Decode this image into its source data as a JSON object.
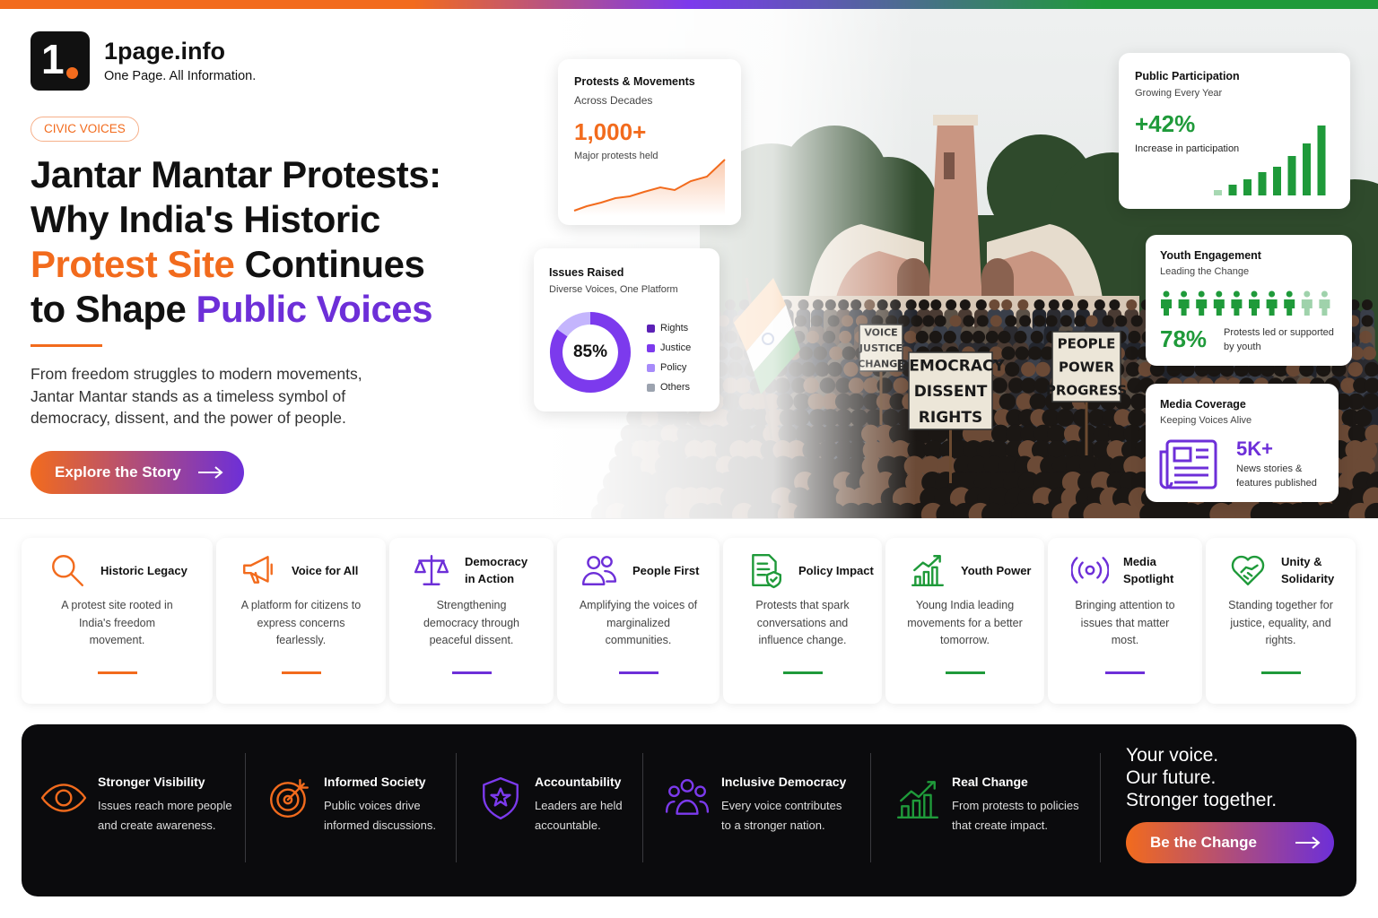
{
  "brand": {
    "name": "1page.info",
    "tagline": "One Page. All Information."
  },
  "hero": {
    "badge": "CIVIC VOICES",
    "title": [
      [
        {
          "text": "Jantar Mantar Protests:"
        }
      ],
      [
        {
          "text": "Why India's Historic"
        }
      ],
      [
        {
          "text": "Protest Site",
          "color": "#f26b1d"
        },
        {
          "text": " Continues"
        }
      ],
      [
        {
          "text": "to Shape "
        },
        {
          "text": "Public Voices",
          "color": "#6d2fd8"
        }
      ]
    ],
    "description": "From freedom struggles to modern movements, Jantar Mantar stands as a timeless symbol of democracy, dissent, and the power of people.",
    "button": "Explore the Story"
  },
  "photo_signs": [
    [
      "VOICE",
      "JUSTICE",
      "CHANGE"
    ],
    [
      "DEMOCRACY",
      "DISSENT",
      "RIGHTS"
    ],
    [
      "PEOPLE",
      "POWER",
      "PROGRESS"
    ]
  ],
  "stats": {
    "protests": {
      "title": "Protests & Movements",
      "subtitle": "Across Decades",
      "value": "1,000+",
      "caption": "Major protests held"
    },
    "issues": {
      "title": "Issues Raised",
      "subtitle": "Diverse Voices, One Platform",
      "value": "85%",
      "legend": [
        {
          "label": "Rights",
          "color": "#5b21b6"
        },
        {
          "label": "Justice",
          "color": "#7c3aed"
        },
        {
          "label": "Policy",
          "color": "#a78bfa"
        },
        {
          "label": "Others",
          "color": "#9ca3af"
        }
      ]
    },
    "participation": {
      "title": "Public Participation",
      "subtitle": "Growing Every Year",
      "value": "+42%",
      "caption": "Increase in participation"
    },
    "youth": {
      "title": "Youth Engagement",
      "subtitle": "Leading the Change",
      "value": "78%",
      "caption": "Protests led or supported by youth"
    },
    "media": {
      "title": "Media Coverage",
      "subtitle": "Keeping Voices Alive",
      "value": "5K+",
      "caption": "News stories & features published"
    }
  },
  "features": [
    {
      "title": "Historic Legacy",
      "description": "A protest site rooted in India's freedom movement.",
      "color": "#f26b1d"
    },
    {
      "title": "Voice for All",
      "description": "A platform for citizens to express concerns fearlessly.",
      "color": "#f26b1d"
    },
    {
      "title": "Democracy in Action",
      "description": "Strengthening democracy through peaceful dissent.",
      "color": "#6d2fd8"
    },
    {
      "title": "People First",
      "description": "Amplifying the voices of marginalized communities.",
      "color": "#6d2fd8"
    },
    {
      "title": "Policy Impact",
      "description": "Protests that spark conversations and influence change.",
      "color": "#1f9a3a"
    },
    {
      "title": "Youth Power",
      "description": "Young India leading movements for a better tomorrow.",
      "color": "#1f9a3a"
    },
    {
      "title": "Media Spotlight",
      "description": "Bringing attention to issues that matter most.",
      "color": "#6d2fd8"
    },
    {
      "title": "Unity & Solidarity",
      "description": "Standing together for justice, equality, and rights.",
      "color": "#1f9a3a"
    }
  ],
  "impact": [
    {
      "title": "Stronger Visibility",
      "description": "Issues reach more people and create awareness.",
      "color": "#f26b1d"
    },
    {
      "title": "Informed Society",
      "description": "Public voices drive informed discussions.",
      "color": "#f26b1d"
    },
    {
      "title": "Accountability",
      "description": "Leaders are held accountable.",
      "color": "#7c3aed"
    },
    {
      "title": "Inclusive Democracy",
      "description": "Every voice contributes to a stronger nation.",
      "color": "#7c3aed"
    },
    {
      "title": "Real Change",
      "description": "From protests to policies that create impact.",
      "color": "#1f9a3a"
    }
  ],
  "cta": {
    "lines": [
      "Your voice.",
      "Our future.",
      "Stronger together."
    ],
    "button": "Be the Change"
  }
}
